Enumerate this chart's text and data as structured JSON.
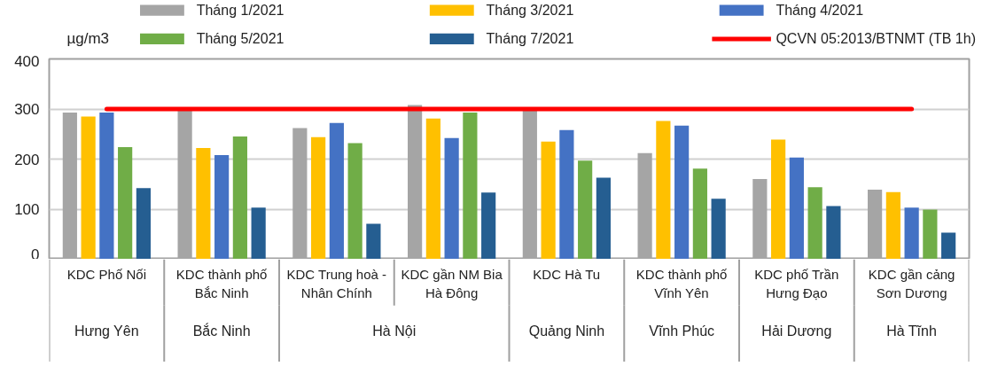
{
  "chart_data": {
    "type": "bar",
    "ylabel": "µg/m3",
    "categories": [
      "KDC Phố Nối",
      "KDC thành phố Bắc Ninh",
      "KDC Trung hoà - Nhân Chính",
      "KDC gần NM Bia Hà Đông",
      "KDC Hà Tu",
      "KDC thành phố Vĩnh Yên",
      "KDC phố Trần Hưng Đạo",
      "KDC gần cảng Sơn Dương"
    ],
    "series": [
      {
        "name": "Tháng 1/2021",
        "color": "#a5a5a5",
        "values": [
          293,
          298,
          262,
          308,
          297,
          212,
          160,
          139
        ]
      },
      {
        "name": "Tháng 3/2021",
        "color": "#ffc000",
        "values": [
          285,
          222,
          244,
          281,
          235,
          276,
          239,
          134
        ]
      },
      {
        "name": "Tháng 4/2021",
        "color": "#4472c4",
        "values": [
          293,
          208,
          272,
          242,
          258,
          267,
          203,
          103
        ]
      },
      {
        "name": "Tháng 5/2021",
        "color": "#70ad47",
        "values": [
          224,
          245,
          232,
          293,
          197,
          181,
          144,
          99
        ]
      },
      {
        "name": "Tháng 7/2021",
        "color": "#255e91",
        "values": [
          142,
          103,
          71,
          133,
          163,
          121,
          106,
          53
        ]
      },
      {
        "name": "QCVN 05:2013/BTNMT (TB 1h)",
        "color": "#ff0000",
        "type": "line",
        "values": [
          300,
          300,
          300,
          300,
          300,
          300,
          300,
          300
        ]
      }
    ],
    "annotations": [
      "Hưng Yên",
      "Bắc Ninh",
      "Hà Nội",
      "Quảng Ninh",
      "Vĩnh Phúc",
      "Hải Dương",
      "Hà Tĩnh"
    ],
    "ylim": [
      0,
      400
    ],
    "yticks": [
      0,
      100,
      200,
      300,
      400
    ],
    "grid": "y",
    "legend": "top",
    "line_style": "solid",
    "marker": "none"
  }
}
